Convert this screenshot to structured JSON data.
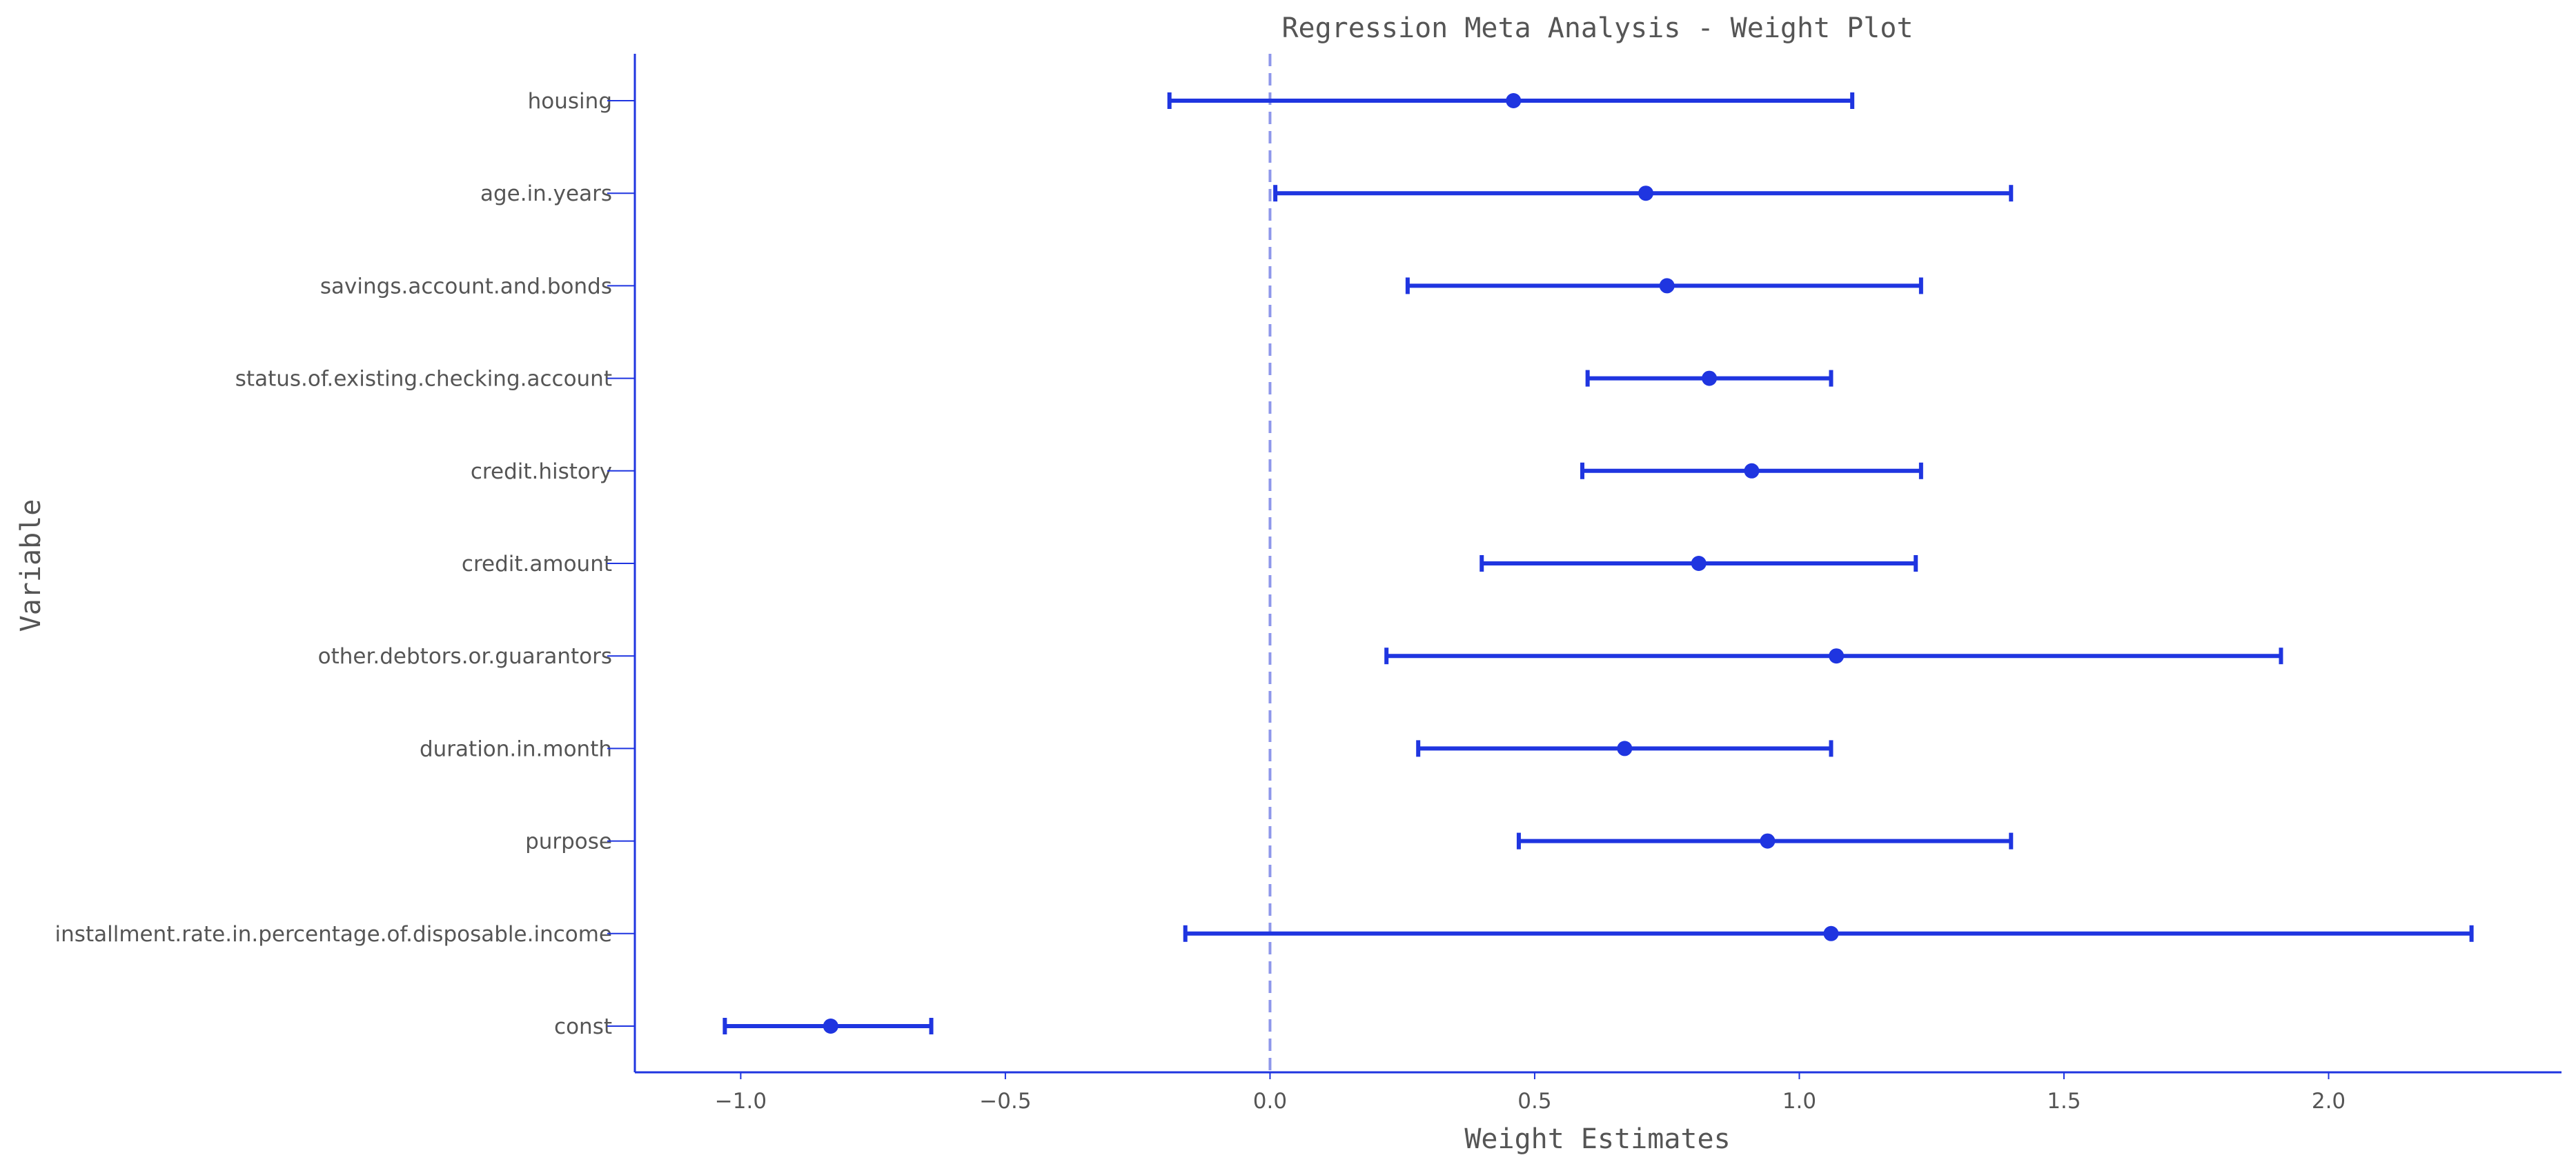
{
  "chart_data": {
    "type": "forest",
    "title": "Regression Meta Analysis - Weight Plot",
    "xlabel": "Weight Estimates",
    "ylabel": "Variable",
    "xlim": [
      -1.2,
      2.44
    ],
    "x_ticks": [
      -1.0,
      -0.5,
      0.0,
      0.5,
      1.0,
      1.5,
      2.0
    ],
    "x_tick_labels": [
      "−1.0",
      "−0.5",
      "0.0",
      "0.5",
      "1.0",
      "1.5",
      "2.0"
    ],
    "reference_line": 0.0,
    "grid": false,
    "legend": "none",
    "colors": {
      "series": "#1f35e0",
      "reference": "#8e97ea",
      "text": "#555555"
    },
    "variables": [
      {
        "name": "housing",
        "estimate": 0.46,
        "lower": -0.19,
        "upper": 1.1
      },
      {
        "name": "age.in.years",
        "estimate": 0.71,
        "lower": 0.01,
        "upper": 1.4
      },
      {
        "name": "savings.account.and.bonds",
        "estimate": 0.75,
        "lower": 0.26,
        "upper": 1.23
      },
      {
        "name": "status.of.existing.checking.account",
        "estimate": 0.83,
        "lower": 0.6,
        "upper": 1.06
      },
      {
        "name": "credit.history",
        "estimate": 0.91,
        "lower": 0.59,
        "upper": 1.23
      },
      {
        "name": "credit.amount",
        "estimate": 0.81,
        "lower": 0.4,
        "upper": 1.22
      },
      {
        "name": "other.debtors.or.guarantors",
        "estimate": 1.07,
        "lower": 0.22,
        "upper": 1.91
      },
      {
        "name": "duration.in.month",
        "estimate": 0.67,
        "lower": 0.28,
        "upper": 1.06
      },
      {
        "name": "purpose",
        "estimate": 0.94,
        "lower": 0.47,
        "upper": 1.4
      },
      {
        "name": "installment.rate.in.percentage.of.disposable.income",
        "estimate": 1.06,
        "lower": -0.16,
        "upper": 2.27
      },
      {
        "name": "const",
        "estimate": -0.83,
        "lower": -1.03,
        "upper": -0.64
      }
    ]
  }
}
